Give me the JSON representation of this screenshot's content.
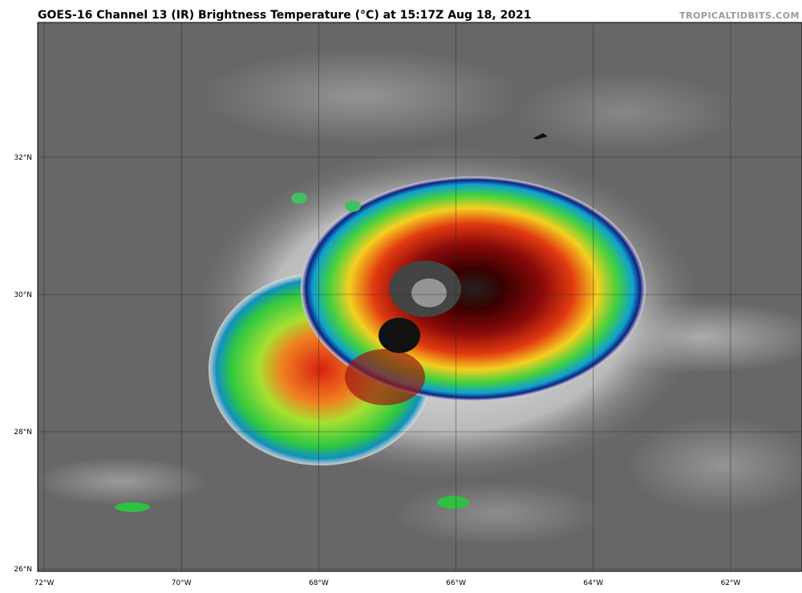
{
  "header": {
    "title": "GOES-16 Channel 13 (IR) Brightness Temperature (°C) at 15:17Z Aug 18, 2021",
    "source": "TROPICALTIDBITS.COM"
  },
  "map": {
    "lat_labels": [
      "32°N",
      "30°N",
      "28°N",
      "26°N"
    ],
    "lon_labels": [
      "72°W",
      "70°W",
      "68°W",
      "66°W",
      "64°W",
      "62°W"
    ]
  }
}
